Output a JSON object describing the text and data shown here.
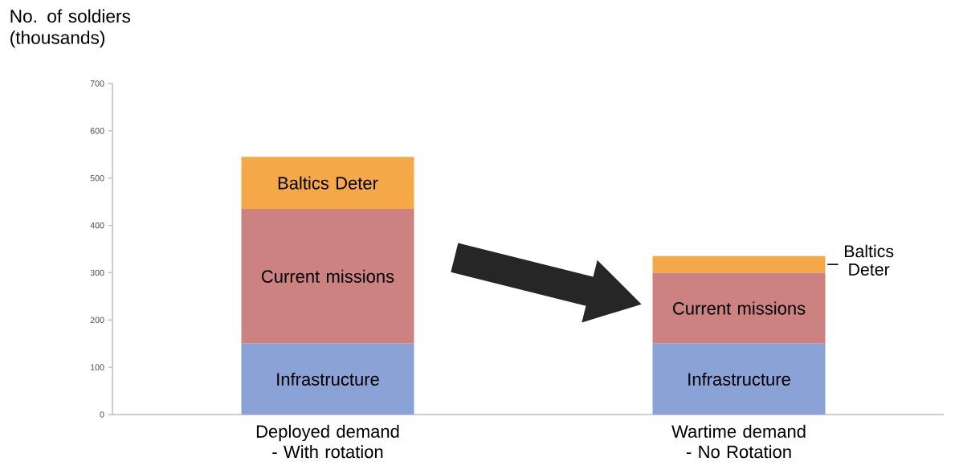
{
  "chart_data": {
    "type": "bar",
    "stacked": true,
    "ylabel": "No. of soldiers (thousands)",
    "categories": [
      "Deployed demand - With rotation",
      "Wartime demand - No Rotation"
    ],
    "series": [
      {
        "name": "Infrastructure",
        "color": "#8aa2d6",
        "values": [
          150,
          150
        ]
      },
      {
        "name": "Current missions",
        "color": "#cd8282",
        "values": [
          285,
          150
        ]
      },
      {
        "name": "Baltics Deter",
        "color": "#f5a847",
        "values": [
          110,
          35
        ]
      }
    ],
    "ylim": [
      0,
      700
    ],
    "yticks": [
      0,
      100,
      200,
      300,
      400,
      500,
      600,
      700
    ],
    "grid": false,
    "legend": false
  }
}
